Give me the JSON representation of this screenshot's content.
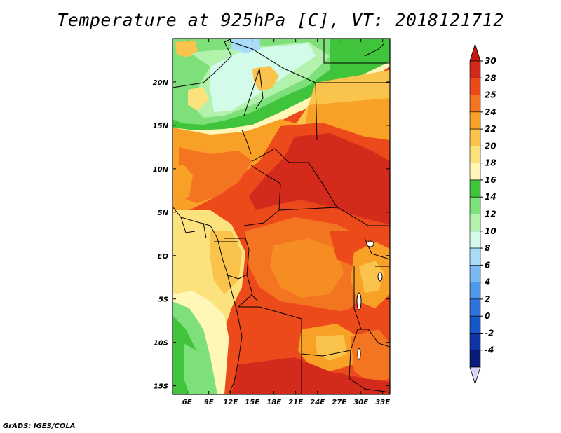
{
  "title": "Temperature at 925hPa [C], VT: 2018121712",
  "footer": "GrADS: IGES/COLA",
  "map": {
    "lon_range": [
      4,
      34
    ],
    "lat_range": [
      -16,
      25
    ],
    "lon_ticks": [
      {
        "value": 6,
        "label": "6E"
      },
      {
        "value": 9,
        "label": "9E"
      },
      {
        "value": 12,
        "label": "12E"
      },
      {
        "value": 15,
        "label": "15E"
      },
      {
        "value": 18,
        "label": "18E"
      },
      {
        "value": 21,
        "label": "21E"
      },
      {
        "value": 24,
        "label": "24E"
      },
      {
        "value": 27,
        "label": "27E"
      },
      {
        "value": 30,
        "label": "30E"
      },
      {
        "value": 33,
        "label": "33E"
      }
    ],
    "lat_ticks": [
      {
        "value": 20,
        "label": "20N"
      },
      {
        "value": 15,
        "label": "15N"
      },
      {
        "value": 10,
        "label": "10N"
      },
      {
        "value": 5,
        "label": "5N"
      },
      {
        "value": 0,
        "label": "EQ"
      },
      {
        "value": -5,
        "label": "5S"
      },
      {
        "value": -10,
        "label": "10S"
      },
      {
        "value": -15,
        "label": "15S"
      }
    ]
  },
  "colorbar": {
    "unit": "C",
    "levels": [
      "30",
      "28",
      "25",
      "24",
      "22",
      "20",
      "18",
      "16",
      "14",
      "12",
      "10",
      "8",
      "6",
      "4",
      "2",
      "0",
      "-2",
      "-4"
    ],
    "colors": [
      "#d42a1b",
      "#ed4a1c",
      "#f47521",
      "#f8a126",
      "#fac34b",
      "#fce27d",
      "#fef7b7",
      "#3fc43c",
      "#7ee07a",
      "#b3f2ac",
      "#d3fbea",
      "#a8dcf8",
      "#7ab8f1",
      "#5098e7",
      "#2f74dc",
      "#1656c9",
      "#0e34a8",
      "#0b1b7a"
    ],
    "top_arrow_color": "#c21a0d",
    "bottom_arrow_color": "#dad4f8"
  }
}
